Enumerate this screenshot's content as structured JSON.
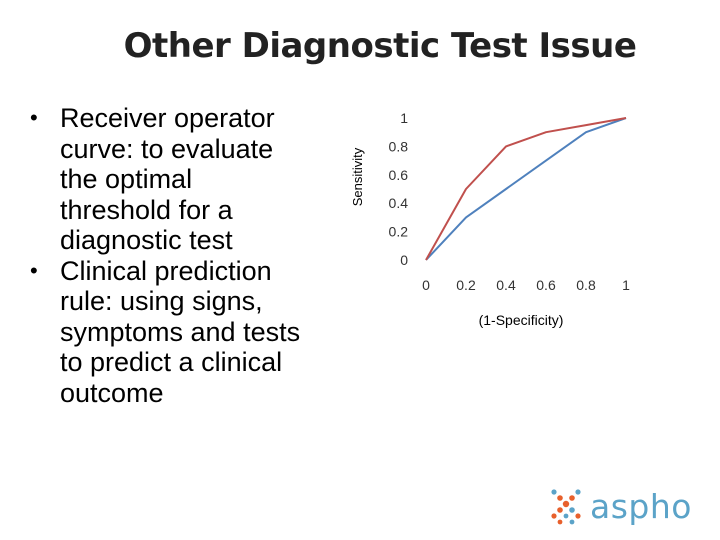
{
  "slide": {
    "title": "Other Diagnostic Test Issue",
    "bullets": [
      "Receiver operator curve: to evaluate the optimal threshold for a diagnostic test",
      "Clinical prediction rule: using signs, symptoms and tests to predict a clinical outcome"
    ],
    "bullet_lines": [
      [
        "Receiver operator",
        "curve: to evaluate",
        "the optimal",
        "threshold for a",
        "diagnostic test"
      ],
      [
        "Clinical prediction",
        "rule: using signs,",
        "symptoms and tests",
        "to predict a clinical",
        "outcome"
      ]
    ]
  },
  "chart_data": {
    "type": "line",
    "title": "",
    "xlabel": "(1-Specificity)",
    "ylabel": "Sensitivity",
    "xlim": [
      0,
      1
    ],
    "ylim": [
      0,
      1
    ],
    "x_ticks": [
      0,
      0.2,
      0.4,
      0.6,
      0.8,
      1
    ],
    "x_tick_labels": [
      "0",
      "0.2",
      "0.4",
      "0.6",
      "0.8",
      "1"
    ],
    "y_ticks": [
      0,
      0.2,
      0.4,
      0.6,
      0.8,
      1
    ],
    "y_tick_labels": [
      "0",
      "0.2",
      "0.4",
      "0.6",
      "0.8",
      "1"
    ],
    "grid": false,
    "legend": "none",
    "series": [
      {
        "color": "#4f81bd",
        "x": [
          0,
          0.2,
          0.4,
          0.6,
          0.8,
          1
        ],
        "y": [
          0,
          0.3,
          0.5,
          0.7,
          0.9,
          1
        ]
      },
      {
        "color": "#c0504d",
        "x": [
          0,
          0.2,
          0.4,
          0.6,
          0.8,
          1
        ],
        "y": [
          0,
          0.5,
          0.8,
          0.9,
          0.95,
          1
        ]
      }
    ]
  },
  "logo": {
    "text": "aspho",
    "colors": [
      "#e8602c",
      "#5ba3c8"
    ]
  }
}
